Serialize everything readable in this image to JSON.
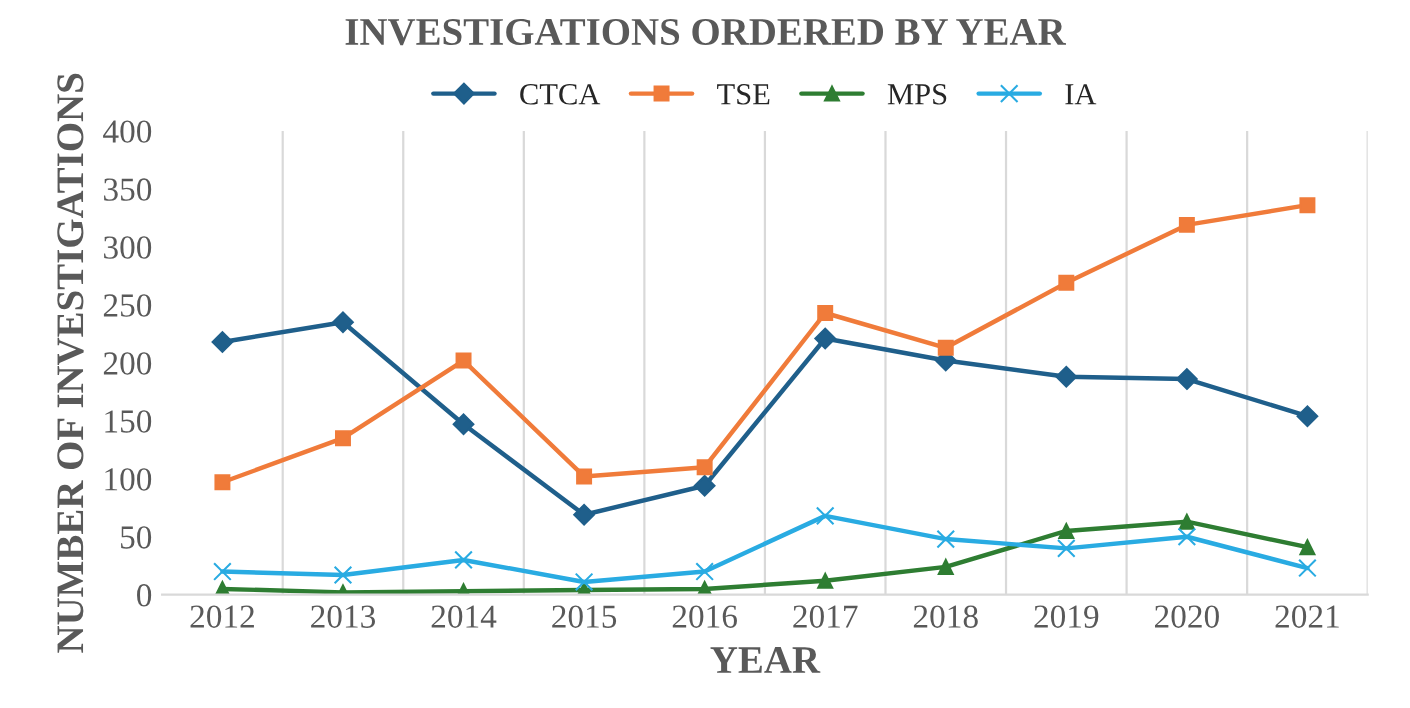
{
  "chart_data": {
    "type": "line",
    "title": "INVESTIGATIONS ORDERED BY YEAR",
    "xlabel": "YEAR",
    "ylabel": "NUMBER OF INVESTIGATIONS",
    "categories": [
      "2012",
      "2013",
      "2014",
      "2015",
      "2016",
      "2017",
      "2018",
      "2019",
      "2020",
      "2021"
    ],
    "series": [
      {
        "name": "CTCA",
        "color": "#1f5f8b",
        "marker": "diamond",
        "values": [
          218,
          235,
          147,
          69,
          94,
          221,
          202,
          188,
          186,
          154
        ]
      },
      {
        "name": "TSE",
        "color": "#f07b3a",
        "marker": "square",
        "values": [
          97,
          135,
          202,
          102,
          110,
          243,
          213,
          269,
          319,
          336
        ]
      },
      {
        "name": "MPS",
        "color": "#2e7d32",
        "marker": "triangle",
        "values": [
          5,
          2,
          3,
          4,
          5,
          12,
          24,
          55,
          63,
          41
        ]
      },
      {
        "name": "IA",
        "color": "#29abe2",
        "marker": "cross",
        "values": [
          20,
          17,
          30,
          11,
          20,
          68,
          48,
          40,
          50,
          23
        ]
      }
    ],
    "ylim": [
      0,
      400
    ],
    "yticks": [
      0,
      50,
      100,
      150,
      200,
      250,
      300,
      350,
      400
    ],
    "grid": "x",
    "legend": "top",
    "line_style": "solid"
  }
}
